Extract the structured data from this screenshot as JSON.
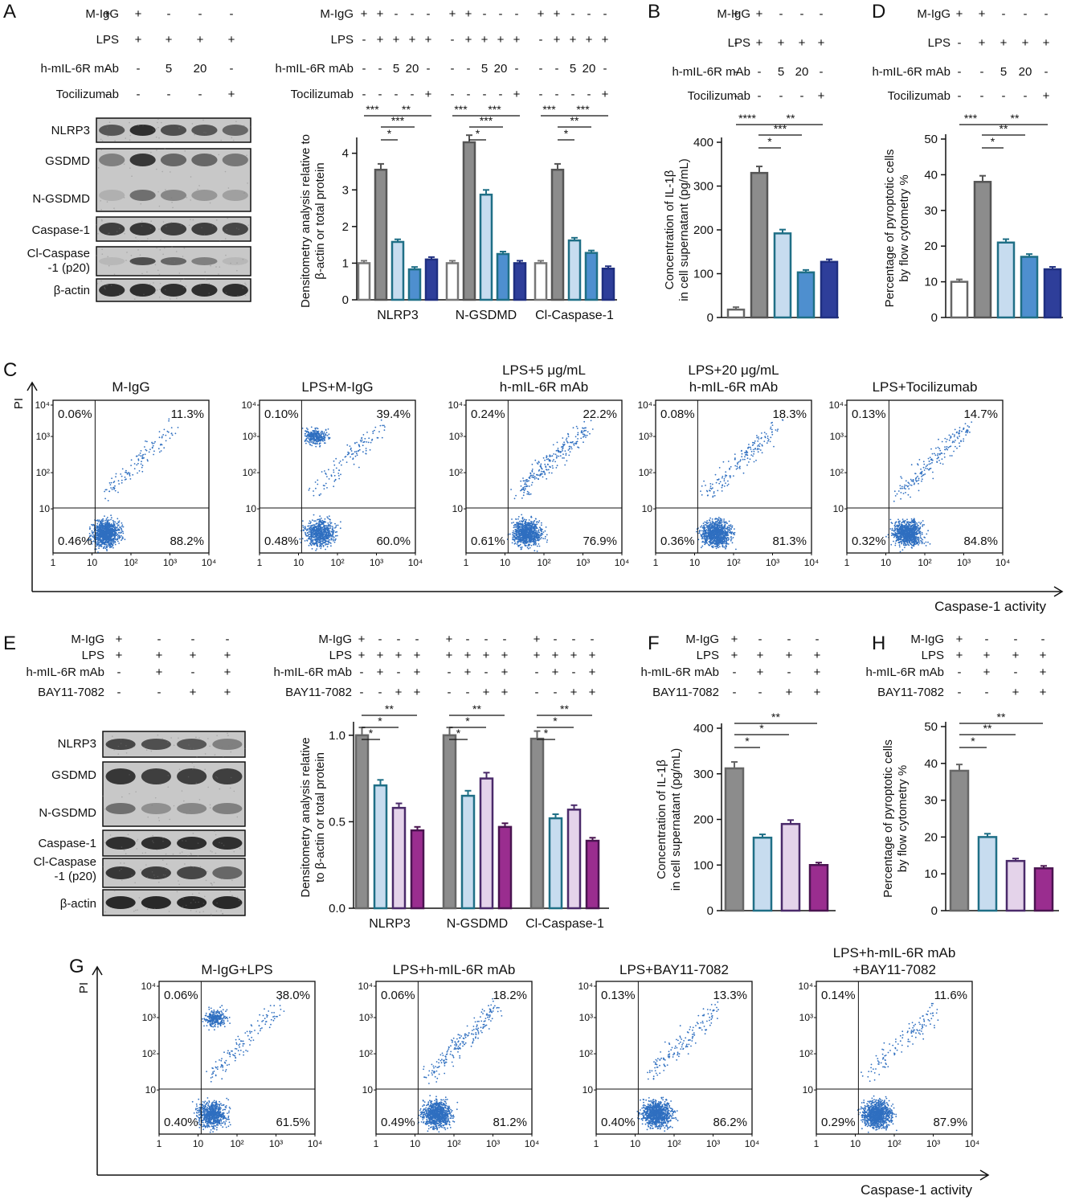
{
  "panel_letters": {
    "A": "A",
    "B": "B",
    "C": "C",
    "D": "D",
    "E": "E",
    "F": "F",
    "G": "G",
    "H": "H"
  },
  "colors": {
    "white_bar": "#ffffff",
    "gray_bar": "#8c8c8c",
    "lightblue_bar": "#c7dcef",
    "teal_bar": "#1f6f86",
    "blue_bar": "#4e8fcf",
    "navy_bar": "#2e3e9a",
    "lilac_bar": "#e4d3ea",
    "purple_bar": "#9a2d8f",
    "dot_blue": "#2f6fc0"
  },
  "panel_A": {
    "blot": {
      "cond_labels": [
        "M-IgG",
        "LPS",
        "h-mIL-6R mAb",
        "Tocilizumab"
      ],
      "cond_signs": [
        [
          "+",
          "+",
          "-",
          "-",
          "-"
        ],
        [
          "-",
          "+",
          "+",
          "+",
          "+"
        ],
        [
          "-",
          "-",
          "5",
          "20",
          "-"
        ],
        [
          "-",
          "-",
          "-",
          "-",
          "+"
        ]
      ],
      "bands": [
        "NLRP3",
        "GSDMD",
        "N-GSDMD",
        "Caspase-1",
        "Cl-Caspase\n-1 (p20)",
        "β-actin"
      ]
    },
    "bars_header": {
      "cond_labels": [
        "M-IgG",
        "LPS",
        "h-mIL-6R mAb",
        "Tocilizumab"
      ],
      "cond_signs": [
        [
          "+",
          "+",
          "-",
          "-",
          "-"
        ],
        [
          "-",
          "+",
          "+",
          "+",
          "+"
        ],
        [
          "-",
          "-",
          "5",
          "20",
          "-"
        ],
        [
          "-",
          "-",
          "-",
          "-",
          "+"
        ]
      ]
    }
  },
  "chart_data": [
    {
      "id": "A",
      "type": "bar",
      "categories": [
        "NLRP3",
        "N-GSDMD",
        "Cl-Caspase-1"
      ],
      "series_colors": [
        "white_bar",
        "gray_bar",
        "lightblue_bar",
        "blue_bar",
        "navy_bar"
      ],
      "values": [
        [
          1.0,
          3.55,
          1.58,
          0.83,
          1.1
        ],
        [
          1.0,
          4.3,
          2.87,
          1.25,
          1.0
        ],
        [
          1.0,
          3.55,
          1.62,
          1.28,
          0.85
        ]
      ],
      "ylabel": "Densitometry analysis relative to\nβ-actin or total protein",
      "ylim": [
        0,
        4.3
      ],
      "yticks": [
        0,
        1,
        2,
        3,
        4
      ],
      "sig": [
        [
          [
            "***",
            "**"
          ],
          [
            "*",
            "***"
          ]
        ],
        [
          [
            "***",
            "***"
          ],
          [
            "*",
            "***"
          ]
        ],
        [
          [
            "***",
            "***"
          ],
          [
            "*",
            "**"
          ]
        ]
      ]
    },
    {
      "id": "B",
      "type": "bar",
      "categories": [
        ""
      ],
      "series_colors": [
        "white_bar",
        "gray_bar",
        "lightblue_bar",
        "blue_bar",
        "navy_bar"
      ],
      "values": [
        [
          18,
          330,
          192,
          103,
          127
        ]
      ],
      "ylabel": "Concentration of IL-1β\nin cell supernatant (pg/mL)",
      "ylim": [
        0,
        400
      ],
      "yticks": [
        0,
        100,
        200,
        300,
        400
      ],
      "cond_labels": [
        "M-IgG",
        "LPS",
        "h-mIL-6R mAb",
        "Tocilizumab"
      ],
      "cond_signs": [
        [
          "+",
          "+",
          "-",
          "-",
          "-"
        ],
        [
          "-",
          "+",
          "+",
          "+",
          "+"
        ],
        [
          "-",
          "-",
          "5",
          "20",
          "-"
        ],
        [
          "-",
          "-",
          "-",
          "-",
          "+"
        ]
      ],
      "sig": [
        "****",
        "**",
        "***",
        "*"
      ]
    },
    {
      "id": "D",
      "type": "bar",
      "categories": [
        ""
      ],
      "series_colors": [
        "white_bar",
        "gray_bar",
        "lightblue_bar",
        "blue_bar",
        "navy_bar"
      ],
      "values": [
        [
          10,
          38,
          21,
          17,
          13.5
        ]
      ],
      "ylabel": "Percentage of pyroptotic cells\nby flow cytometry %",
      "ylim": [
        0,
        50
      ],
      "yticks": [
        0,
        10,
        20,
        30,
        40,
        50
      ],
      "cond_labels": [
        "M-IgG",
        "LPS",
        "h-mIL-6R mAb",
        "Tocilizumab"
      ],
      "cond_signs": [
        [
          "+",
          "+",
          "-",
          "-",
          "-"
        ],
        [
          "-",
          "+",
          "+",
          "+",
          "+"
        ],
        [
          "-",
          "-",
          "5",
          "20",
          "-"
        ],
        [
          "-",
          "-",
          "-",
          "-",
          "+"
        ]
      ],
      "sig": [
        "***",
        "**",
        "**",
        "*"
      ]
    },
    {
      "id": "E",
      "type": "bar",
      "categories": [
        "NLRP3",
        "N-GSDMD",
        "Cl-Caspase-1"
      ],
      "series_colors": [
        "gray_bar",
        "lightblue_bar",
        "lilac_bar",
        "purple_bar"
      ],
      "values": [
        [
          1.0,
          0.71,
          0.58,
          0.45
        ],
        [
          1.0,
          0.65,
          0.75,
          0.47
        ],
        [
          0.98,
          0.52,
          0.57,
          0.39
        ]
      ],
      "ylabel": "Densitometry analysis relative\nto β-actin or total protein",
      "ylim": [
        0,
        1.05
      ],
      "yticks": [
        0.0,
        0.5,
        1.0
      ],
      "sig": [
        [
          "**",
          "*",
          "*"
        ],
        [
          "**",
          "*",
          "*"
        ],
        [
          "**",
          "*",
          "*"
        ]
      ]
    },
    {
      "id": "F",
      "type": "bar",
      "categories": [
        ""
      ],
      "series_colors": [
        "gray_bar",
        "lightblue_bar",
        "lilac_bar",
        "purple_bar"
      ],
      "values": [
        [
          312,
          160,
          190,
          100
        ]
      ],
      "ylabel": "Concentration of IL-1β\nin cell supernatant (pg/mL)",
      "ylim": [
        0,
        400
      ],
      "yticks": [
        0,
        100,
        200,
        300,
        400
      ],
      "cond_labels": [
        "M-IgG",
        "LPS",
        "h-mIL-6R mAb",
        "BAY11-7082"
      ],
      "cond_signs": [
        [
          "+",
          "-",
          "-",
          "-"
        ],
        [
          "+",
          "+",
          "+",
          "+"
        ],
        [
          "-",
          "+",
          "-",
          "+"
        ],
        [
          "-",
          "-",
          "+",
          "+"
        ]
      ],
      "sig": [
        "**",
        "*",
        "*"
      ]
    },
    {
      "id": "H",
      "type": "bar",
      "categories": [
        ""
      ],
      "series_colors": [
        "gray_bar",
        "lightblue_bar",
        "lilac_bar",
        "purple_bar"
      ],
      "values": [
        [
          38,
          20,
          13.5,
          11.5
        ]
      ],
      "ylabel": "Percentage of pyroptotic cells\nby flow cytometry %",
      "ylim": [
        0,
        50
      ],
      "yticks": [
        0,
        10,
        20,
        30,
        40,
        50
      ],
      "cond_labels": [
        "M-IgG",
        "LPS",
        "h-mIL-6R mAb",
        "BAY11-7082"
      ],
      "cond_signs": [
        [
          "+",
          "-",
          "-",
          "-"
        ],
        [
          "+",
          "+",
          "+",
          "+"
        ],
        [
          "-",
          "+",
          "-",
          "+"
        ],
        [
          "-",
          "-",
          "+",
          "+"
        ]
      ],
      "sig": [
        "**",
        "**",
        "*"
      ]
    }
  ],
  "panel_E": {
    "blot": {
      "cond_labels": [
        "M-IgG",
        "LPS",
        "h-mIL-6R mAb",
        "BAY11-7082"
      ],
      "cond_signs": [
        [
          "+",
          "-",
          "-",
          "-"
        ],
        [
          "+",
          "+",
          "+",
          "+"
        ],
        [
          "-",
          "+",
          "-",
          "+"
        ],
        [
          "-",
          "-",
          "+",
          "+"
        ]
      ],
      "bands": [
        "NLRP3",
        "GSDMD",
        "N-GSDMD",
        "Caspase-1",
        "Cl-Caspase\n-1 (p20)",
        "β-actin"
      ]
    },
    "bars_header": {
      "cond_labels": [
        "M-IgG",
        "LPS",
        "h-mIL-6R mAb",
        "BAY11-7082"
      ],
      "cond_signs": [
        [
          "+",
          "-",
          "-",
          "-"
        ],
        [
          "+",
          "+",
          "+",
          "+"
        ],
        [
          "-",
          "+",
          "-",
          "+"
        ],
        [
          "-",
          "-",
          "+",
          "+"
        ]
      ]
    }
  },
  "flow_C": {
    "y_axis_label": "PI",
    "x_axis_label": "Caspase-1 activity",
    "x_ticks": [
      "1",
      "10",
      "10²",
      "10³",
      "10⁴"
    ],
    "y_ticks": [
      "10⁴",
      "10³",
      "10²",
      "10"
    ],
    "plots": [
      {
        "title": "M-IgG",
        "q": [
          "0.06%",
          "11.3%",
          "0.46%",
          "88.2%"
        ],
        "upper": 0.11
      },
      {
        "title": "LPS+M-IgG",
        "q": [
          "0.10%",
          "39.4%",
          "0.48%",
          "60.0%"
        ],
        "upper": 0.39
      },
      {
        "title": "LPS+5 μg/mL\nh-mIL-6R mAb",
        "q": [
          "0.24%",
          "22.2%",
          "0.61%",
          "76.9%"
        ],
        "upper": 0.22
      },
      {
        "title": "LPS+20 μg/mL\nh-mIL-6R mAb",
        "q": [
          "0.08%",
          "18.3%",
          "0.36%",
          "81.3%"
        ],
        "upper": 0.18
      },
      {
        "title": "LPS+Tocilizumab",
        "q": [
          "0.13%",
          "14.7%",
          "0.32%",
          "84.8%"
        ],
        "upper": 0.15
      }
    ]
  },
  "flow_G": {
    "y_axis_label": "PI",
    "x_axis_label": "Caspase-1 activity",
    "x_ticks": [
      "1",
      "10",
      "10²",
      "10³",
      "10⁴"
    ],
    "y_ticks": [
      "10⁴",
      "10³",
      "10²",
      "10"
    ],
    "plots": [
      {
        "title": "M-IgG+LPS",
        "q": [
          "0.06%",
          "38.0%",
          "0.40%",
          "61.5%"
        ],
        "upper": 0.38
      },
      {
        "title": "LPS+h-mIL-6R mAb",
        "q": [
          "0.06%",
          "18.2%",
          "0.49%",
          "81.2%"
        ],
        "upper": 0.18
      },
      {
        "title": "LPS+BAY11-7082",
        "q": [
          "0.13%",
          "13.3%",
          "0.40%",
          "86.2%"
        ],
        "upper": 0.13
      },
      {
        "title": "LPS+h-mIL-6R mAb\n+BAY11-7082",
        "q": [
          "0.14%",
          "11.6%",
          "0.29%",
          "87.9%"
        ],
        "upper": 0.12
      }
    ]
  }
}
